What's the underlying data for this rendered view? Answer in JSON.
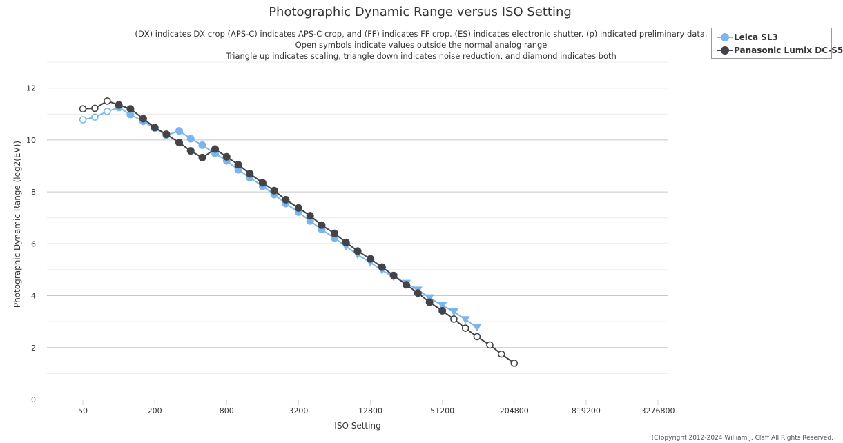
{
  "chart_data": {
    "type": "line",
    "title": "Photographic Dynamic Range versus ISO Setting",
    "subtitle_lines": [
      "(DX) indicates DX crop (APS-C) indicates APS-C crop, and (FF) indicates FF crop. (ES) indicates electronic shutter. (p) indicated preliminary data.",
      "Open symbols indicate values outside the normal analog range",
      "Triangle up indicates scaling, triangle down indicates noise reduction, and diamond indicates both"
    ],
    "xlabel": "ISO Setting",
    "ylabel": "Photographic Dynamic Range (log2(EV))",
    "x_scale": "log2",
    "x_ticks": [
      "50",
      "200",
      "800",
      "3200",
      "12800",
      "51200",
      "204800",
      "819200",
      "3276800"
    ],
    "x_tick_values": [
      50,
      200,
      800,
      3200,
      12800,
      51200,
      204800,
      819200,
      3276800
    ],
    "xlim": [
      25,
      4000000
    ],
    "y_ticks": [
      "0",
      "2",
      "4",
      "6",
      "8",
      "10",
      "12"
    ],
    "ylim": [
      0,
      13
    ],
    "grid": "horizontal",
    "legend_position": "top-right",
    "series": [
      {
        "name": "Leica SL3",
        "color": "#7cb5ec",
        "points": [
          {
            "x": 50,
            "y": 10.78,
            "m": "open"
          },
          {
            "x": 63,
            "y": 10.88,
            "m": "open"
          },
          {
            "x": 80,
            "y": 11.1,
            "m": "open"
          },
          {
            "x": 100,
            "y": 11.25,
            "m": "circle"
          },
          {
            "x": 125,
            "y": 10.98,
            "m": "circle"
          },
          {
            "x": 160,
            "y": 10.72,
            "m": "circle"
          },
          {
            "x": 200,
            "y": 10.45,
            "m": "circle"
          },
          {
            "x": 250,
            "y": 10.18,
            "m": "circle"
          },
          {
            "x": 320,
            "y": 10.35,
            "m": "circle"
          },
          {
            "x": 400,
            "y": 10.05,
            "m": "circle"
          },
          {
            "x": 500,
            "y": 9.8,
            "m": "circle"
          },
          {
            "x": 640,
            "y": 9.48,
            "m": "circle"
          },
          {
            "x": 800,
            "y": 9.2,
            "m": "circle"
          },
          {
            "x": 1000,
            "y": 8.85,
            "m": "circle"
          },
          {
            "x": 1250,
            "y": 8.55,
            "m": "circle"
          },
          {
            "x": 1600,
            "y": 8.22,
            "m": "circle"
          },
          {
            "x": 2000,
            "y": 7.9,
            "m": "circle"
          },
          {
            "x": 2500,
            "y": 7.55,
            "m": "circle"
          },
          {
            "x": 3200,
            "y": 7.22,
            "m": "circle"
          },
          {
            "x": 4000,
            "y": 6.88,
            "m": "circle"
          },
          {
            "x": 5000,
            "y": 6.55,
            "m": "circle"
          },
          {
            "x": 6400,
            "y": 6.22,
            "m": "circle"
          },
          {
            "x": 8000,
            "y": 5.9,
            "m": "tri-down"
          },
          {
            "x": 10000,
            "y": 5.58,
            "m": "tri-down"
          },
          {
            "x": 12800,
            "y": 5.28,
            "m": "tri-down"
          },
          {
            "x": 16000,
            "y": 4.98,
            "m": "tri-down"
          },
          {
            "x": 20000,
            "y": 4.72,
            "m": "tri-down"
          },
          {
            "x": 25600,
            "y": 4.48,
            "m": "tri-down"
          },
          {
            "x": 32000,
            "y": 4.22,
            "m": "tri-down"
          },
          {
            "x": 40000,
            "y": 3.92,
            "m": "tri-down"
          },
          {
            "x": 51200,
            "y": 3.62,
            "m": "tri-down"
          },
          {
            "x": 64000,
            "y": 3.38,
            "m": "tri-down"
          },
          {
            "x": 80000,
            "y": 3.08,
            "m": "tri-down"
          },
          {
            "x": 100000,
            "y": 2.78,
            "m": "tri-down"
          }
        ]
      },
      {
        "name": "Panasonic Lumix DC-S5",
        "color": "#434348",
        "points": [
          {
            "x": 50,
            "y": 11.2,
            "m": "open"
          },
          {
            "x": 63,
            "y": 11.22,
            "m": "open"
          },
          {
            "x": 80,
            "y": 11.5,
            "m": "open"
          },
          {
            "x": 100,
            "y": 11.35,
            "m": "circle"
          },
          {
            "x": 125,
            "y": 11.2,
            "m": "circle"
          },
          {
            "x": 160,
            "y": 10.82,
            "m": "circle"
          },
          {
            "x": 200,
            "y": 10.48,
            "m": "circle"
          },
          {
            "x": 250,
            "y": 10.22,
            "m": "circle"
          },
          {
            "x": 320,
            "y": 9.9,
            "m": "circle"
          },
          {
            "x": 400,
            "y": 9.58,
            "m": "circle"
          },
          {
            "x": 500,
            "y": 9.32,
            "m": "circle"
          },
          {
            "x": 640,
            "y": 9.65,
            "m": "circle"
          },
          {
            "x": 800,
            "y": 9.35,
            "m": "circle"
          },
          {
            "x": 1000,
            "y": 9.05,
            "m": "circle"
          },
          {
            "x": 1250,
            "y": 8.7,
            "m": "circle"
          },
          {
            "x": 1600,
            "y": 8.35,
            "m": "circle"
          },
          {
            "x": 2000,
            "y": 8.05,
            "m": "circle"
          },
          {
            "x": 2500,
            "y": 7.7,
            "m": "circle"
          },
          {
            "x": 3200,
            "y": 7.38,
            "m": "circle"
          },
          {
            "x": 4000,
            "y": 7.08,
            "m": "circle"
          },
          {
            "x": 5000,
            "y": 6.72,
            "m": "circle"
          },
          {
            "x": 6400,
            "y": 6.4,
            "m": "circle"
          },
          {
            "x": 8000,
            "y": 6.05,
            "m": "circle"
          },
          {
            "x": 10000,
            "y": 5.72,
            "m": "circle"
          },
          {
            "x": 12800,
            "y": 5.42,
            "m": "circle"
          },
          {
            "x": 16000,
            "y": 5.1,
            "m": "circle"
          },
          {
            "x": 20000,
            "y": 4.78,
            "m": "circle"
          },
          {
            "x": 25600,
            "y": 4.42,
            "m": "circle"
          },
          {
            "x": 32000,
            "y": 4.1,
            "m": "circle"
          },
          {
            "x": 40000,
            "y": 3.75,
            "m": "circle"
          },
          {
            "x": 51200,
            "y": 3.42,
            "m": "circle"
          },
          {
            "x": 64000,
            "y": 3.1,
            "m": "open"
          },
          {
            "x": 80000,
            "y": 2.75,
            "m": "open"
          },
          {
            "x": 100000,
            "y": 2.42,
            "m": "open"
          },
          {
            "x": 128000,
            "y": 2.1,
            "m": "open"
          },
          {
            "x": 160000,
            "y": 1.75,
            "m": "open"
          },
          {
            "x": 204800,
            "y": 1.4,
            "m": "open"
          }
        ]
      }
    ]
  },
  "legend": {
    "items": [
      {
        "label": "Leica SL3",
        "color": "#7cb5ec"
      },
      {
        "label": "Panasonic Lumix DC-S5",
        "color": "#434348"
      }
    ]
  },
  "footer": {
    "copyright": "(C)opyright 2012-2024 William J. Claff All Rights Reserved."
  }
}
